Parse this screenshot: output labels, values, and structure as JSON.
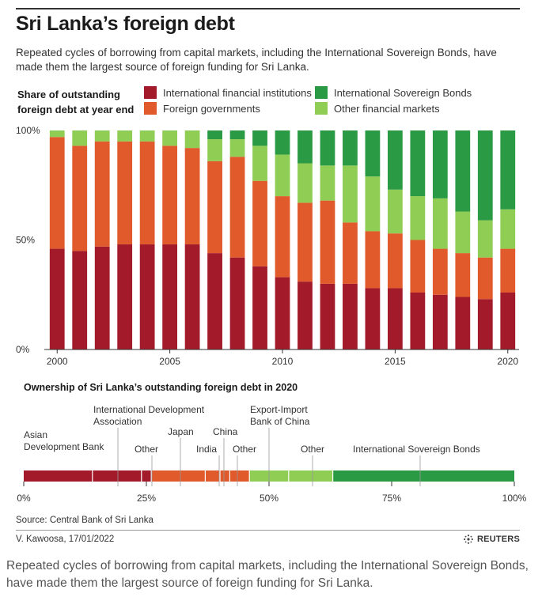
{
  "header": {
    "title": "Sri Lanka’s foreign debt",
    "subtitle": "Repeated cycles of borrowing from capital markets, including the International Sovereign Bonds, have made them the largest source of foreign funding for Sri Lanka."
  },
  "legend": {
    "title_line1": "Share of outstanding",
    "title_line2": "foreign debt at year end",
    "items": [
      {
        "label": "International financial institutions",
        "color": "#a31b2b"
      },
      {
        "label": "Foreign governments",
        "color": "#e05a2b"
      },
      {
        "label": "International Sovereign Bonds",
        "color": "#2b9a45"
      },
      {
        "label": "Other financial markets",
        "color": "#8fcd55"
      }
    ]
  },
  "chart_data": [
    {
      "type": "bar",
      "stacked": true,
      "ylabel": "Share of outstanding foreign debt at year end",
      "y_tick_labels": [
        "0%",
        "50%",
        "100%"
      ],
      "ylim": [
        0,
        100
      ],
      "x_tick_labels": [
        "2000",
        "2005",
        "2010",
        "2015",
        "2020"
      ],
      "grid": false,
      "categories": [
        "2000",
        "2001",
        "2002",
        "2003",
        "2004",
        "2005",
        "2006",
        "2007",
        "2008",
        "2009",
        "2010",
        "2011",
        "2012",
        "2013",
        "2014",
        "2015",
        "2016",
        "2017",
        "2018",
        "2019",
        "2020"
      ],
      "series": [
        {
          "name": "International financial institutions",
          "color": "#a31b2b",
          "values": [
            46,
            45,
            47,
            48,
            48,
            48,
            48,
            44,
            42,
            38,
            33,
            31,
            30,
            30,
            28,
            28,
            26,
            25,
            24,
            23,
            26
          ]
        },
        {
          "name": "Foreign governments",
          "color": "#e05a2b",
          "values": [
            51,
            48,
            48,
            47,
            47,
            45,
            44,
            42,
            46,
            39,
            37,
            36,
            38,
            28,
            26,
            25,
            24,
            21,
            20,
            19,
            20
          ]
        },
        {
          "name": "Other financial markets",
          "color": "#8fcd55",
          "values": [
            3,
            7,
            5,
            5,
            5,
            7,
            8,
            10,
            8,
            16,
            19,
            18,
            16,
            26,
            25,
            20,
            20,
            23,
            19,
            17,
            18
          ]
        },
        {
          "name": "International Sovereign Bonds",
          "color": "#2b9a45",
          "values": [
            0,
            0,
            0,
            0,
            0,
            0,
            0,
            4,
            4,
            7,
            11,
            15,
            16,
            16,
            21,
            27,
            30,
            31,
            37,
            41,
            36
          ]
        }
      ]
    },
    {
      "type": "bar",
      "orientation": "horizontal",
      "title": "Ownership of Sri Lanka’s outstanding foreign debt in 2020",
      "x_tick_labels": [
        "0%",
        "25%",
        "50%",
        "75%",
        "100%"
      ],
      "xlim": [
        0,
        100
      ],
      "segments": [
        {
          "label": "Asian Development Bank",
          "value": 14,
          "color": "#a31b2b"
        },
        {
          "label": "International Development Association",
          "value": 10,
          "color": "#a31b2b"
        },
        {
          "label": "Other",
          "value": 2,
          "color": "#a31b2b"
        },
        {
          "label": "Japan",
          "value": 11,
          "color": "#e05a2b"
        },
        {
          "label": "India",
          "value": 3,
          "color": "#e05a2b"
        },
        {
          "label": "China",
          "value": 2,
          "color": "#e05a2b"
        },
        {
          "label": "Other",
          "value": 4,
          "color": "#e05a2b"
        },
        {
          "label": "Export-Import Bank of China",
          "value": 8,
          "color": "#8fcd55"
        },
        {
          "label": "Other",
          "value": 9,
          "color": "#8fcd55"
        },
        {
          "label": "International Sovereign Bonds",
          "value": 37,
          "color": "#2b9a45"
        }
      ],
      "annotations": [
        {
          "lines": [
            "Asian",
            "Development Bank"
          ],
          "segment": 0
        },
        {
          "lines": [
            "International Development",
            "Association"
          ],
          "segment": 1
        },
        {
          "lines": [
            "Other"
          ],
          "segment": 2
        },
        {
          "lines": [
            "Japan"
          ],
          "segment": 3
        },
        {
          "lines": [
            "India"
          ],
          "segment": 4
        },
        {
          "lines": [
            "China"
          ],
          "segment": 5
        },
        {
          "lines": [
            "Other"
          ],
          "segment": 6
        },
        {
          "lines": [
            "Export-Import",
            "Bank of China"
          ],
          "segment": 7
        },
        {
          "lines": [
            "Other"
          ],
          "segment": 8
        },
        {
          "lines": [
            "International Sovereign Bonds"
          ],
          "segment": 9
        }
      ]
    }
  ],
  "footer": {
    "source": "Source: Central Bank of Sri Lanka",
    "credit": "V. Kawoosa, 17/01/2022",
    "brand": "REUTERS",
    "caption": "Repeated cycles of borrowing from capital markets, including the International Sovereign Bonds, have made them the largest source of foreign funding for Sri Lanka."
  }
}
